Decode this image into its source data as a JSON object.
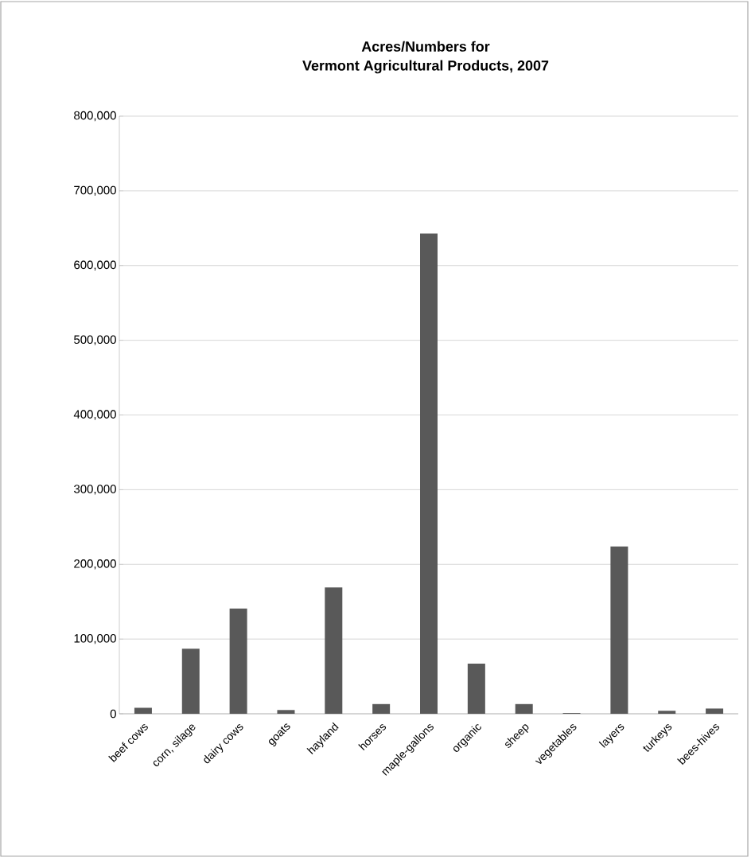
{
  "chart_data": {
    "type": "bar",
    "title": "Acres/Numbers for\nVermont Agricultural Products, 2007",
    "categories": [
      "beef cows",
      "corn, silage",
      "dairy cows",
      "goats",
      "hayland",
      "horses",
      "maple-gallons",
      "organic",
      "sheep",
      "vegetables",
      "layers",
      "turkeys",
      "bees-hives"
    ],
    "values": [
      8000,
      87000,
      141000,
      5000,
      169000,
      13000,
      643000,
      67000,
      13000,
      1000,
      224000,
      4000,
      7000
    ],
    "color": "#595959",
    "ylim": [
      0,
      800000
    ],
    "yticks": [
      {
        "value": 0,
        "label": "0"
      },
      {
        "value": 100000,
        "label": "100,000"
      },
      {
        "value": 200000,
        "label": "200,000"
      },
      {
        "value": 300000,
        "label": "300,000"
      },
      {
        "value": 400000,
        "label": "400,000"
      },
      {
        "value": 500000,
        "label": "500,000"
      },
      {
        "value": 600000,
        "label": "600,000"
      },
      {
        "value": 700000,
        "label": "700,000"
      },
      {
        "value": 800000,
        "label": "800,000"
      }
    ],
    "grid": "y"
  }
}
